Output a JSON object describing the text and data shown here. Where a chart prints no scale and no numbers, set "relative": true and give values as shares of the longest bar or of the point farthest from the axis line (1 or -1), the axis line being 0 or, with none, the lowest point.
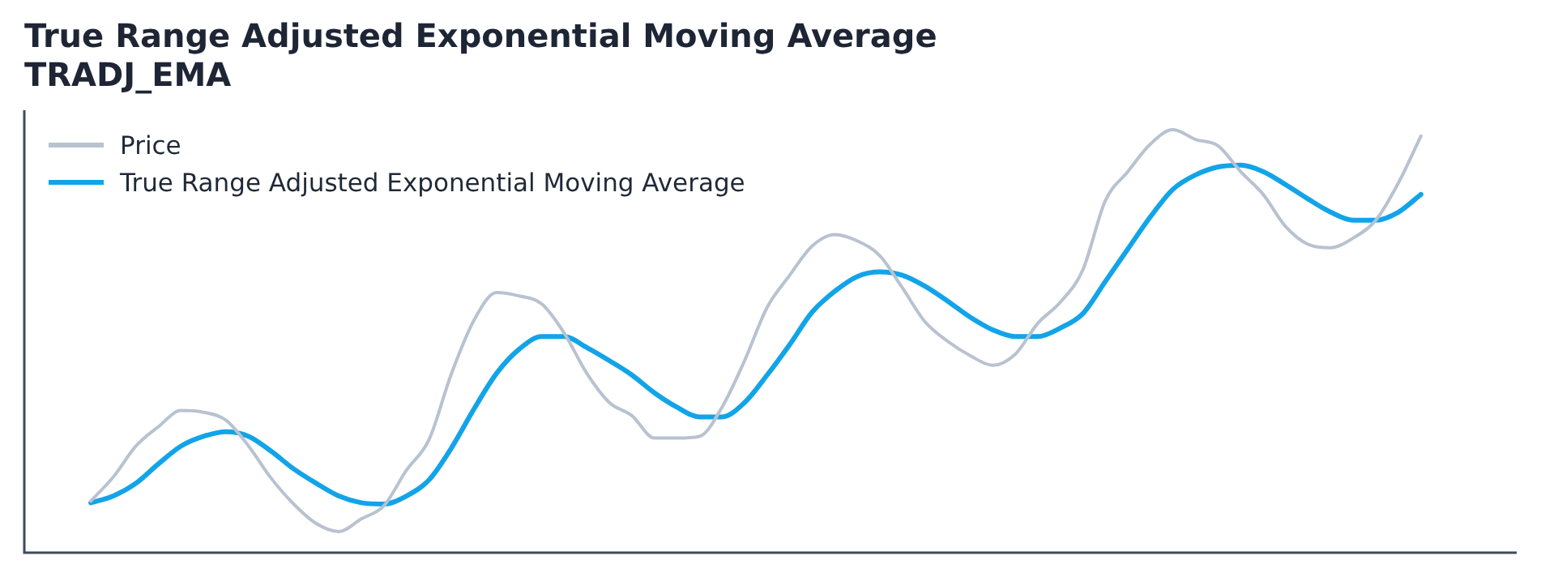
{
  "chart_data": {
    "type": "line",
    "title": "True Range Adjusted Exponential Moving Average",
    "subtitle": "TRADJ_EMA",
    "relative": true,
    "legend": "top left",
    "marker": "none",
    "categories": [
      null,
      null,
      null,
      null,
      null,
      null,
      null,
      null,
      null,
      null,
      null,
      null,
      null,
      null,
      null,
      null,
      null,
      null,
      null,
      null,
      null,
      null,
      null,
      null,
      null,
      null,
      null,
      null,
      null,
      null,
      null,
      null,
      null,
      null,
      null,
      null,
      null,
      null,
      null,
      null,
      null,
      null,
      null,
      null,
      null,
      null,
      null,
      null,
      null,
      null,
      null,
      null,
      null,
      null,
      null,
      null,
      null,
      null,
      null,
      null
    ],
    "series": [
      {
        "name": "Price",
        "color": "#b8c2d0",
        "values": [
          0.122,
          0.179,
          0.252,
          0.298,
          0.336,
          0.332,
          0.313,
          0.252,
          0.176,
          0.115,
          0.069,
          0.05,
          0.08,
          0.111,
          0.195,
          0.267,
          0.424,
          0.55,
          0.615,
          0.607,
          0.588,
          0.519,
          0.424,
          0.355,
          0.324,
          0.271,
          0.271,
          0.275,
          0.344,
          0.454,
          0.58,
          0.656,
          0.725,
          0.752,
          0.737,
          0.702,
          0.626,
          0.546,
          0.5,
          0.466,
          0.443,
          0.469,
          0.542,
          0.592,
          0.668,
          0.832,
          0.901,
          0.966,
          1,
          0.977,
          0.962,
          0.901,
          0.847,
          0.771,
          0.729,
          0.721,
          0.744,
          0.786,
          0.874,
          0.985
        ]
      },
      {
        "name": "True Range Adjusted Exponential Moving Average",
        "color": "#12a4e8",
        "values": [
          0.118,
          0.134,
          0.164,
          0.21,
          0.252,
          0.275,
          0.286,
          0.275,
          0.24,
          0.198,
          0.164,
          0.134,
          0.118,
          0.115,
          0.134,
          0.172,
          0.248,
          0.34,
          0.424,
          0.481,
          0.511,
          0.511,
          0.485,
          0.454,
          0.42,
          0.378,
          0.344,
          0.321,
          0.321,
          0.355,
          0.42,
          0.492,
          0.569,
          0.618,
          0.653,
          0.664,
          0.656,
          0.63,
          0.595,
          0.557,
          0.527,
          0.511,
          0.511,
          0.531,
          0.565,
          0.641,
          0.718,
          0.794,
          0.859,
          0.893,
          0.912,
          0.916,
          0.901,
          0.87,
          0.836,
          0.805,
          0.786,
          0.786,
          0.805,
          0.847
        ]
      }
    ]
  }
}
